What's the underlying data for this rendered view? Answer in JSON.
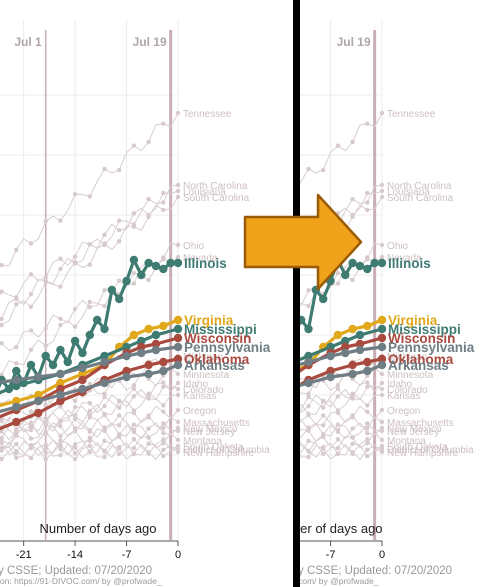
{
  "chart_data": {
    "type": "line",
    "xlabel": "Number of days ago",
    "xticks": [
      -21,
      -14,
      -7,
      0
    ],
    "xticks_right": [
      -7,
      0
    ],
    "date_markers": [
      "Jul 1",
      "Jul 19"
    ],
    "date_markers_right": [
      "Jul 19"
    ],
    "footer_source": "y CSSE; Updated: 07/20/2020",
    "footer_credit": "ion: https://91-DIVOC.com/ by @profwade_",
    "footer_source_right": "y CSSE; Updated: 07/20/2020",
    "footer_credit_right": "com/ by @profwade_",
    "x_domain": [
      -28,
      0
    ],
    "y_domain": [
      0,
      100
    ],
    "highlighted": [
      {
        "name": "Illinois",
        "color": "#3e7b71",
        "values": [
          [
            -28,
            16
          ],
          [
            -27,
            18
          ],
          [
            -26,
            22
          ],
          [
            -25,
            19
          ],
          [
            -24,
            25
          ],
          [
            -23,
            22
          ],
          [
            -22,
            28
          ],
          [
            -21,
            24
          ],
          [
            -20,
            30
          ],
          [
            -19,
            26
          ],
          [
            -18,
            33
          ],
          [
            -17,
            30
          ],
          [
            -16,
            35
          ],
          [
            -15,
            31
          ],
          [
            -14,
            38
          ],
          [
            -13,
            34
          ],
          [
            -12,
            40
          ],
          [
            -11,
            45
          ],
          [
            -10,
            42
          ],
          [
            -9,
            55
          ],
          [
            -8,
            52
          ],
          [
            -7,
            58
          ],
          [
            -6,
            65
          ],
          [
            -5,
            60
          ],
          [
            -4,
            64
          ],
          [
            -3,
            63
          ],
          [
            -2,
            62
          ],
          [
            -1,
            64
          ],
          [
            0,
            64
          ]
        ]
      },
      {
        "name": "Virginia",
        "color": "#e0a81a",
        "values": [
          [
            -28,
            14
          ],
          [
            -25,
            16
          ],
          [
            -22,
            18
          ],
          [
            -19,
            20
          ],
          [
            -16,
            24
          ],
          [
            -13,
            27
          ],
          [
            -10,
            30
          ],
          [
            -8,
            36
          ],
          [
            -6,
            40
          ],
          [
            -4,
            42
          ],
          [
            -2,
            43
          ],
          [
            0,
            45
          ]
        ]
      },
      {
        "name": "Mississippi",
        "color": "#3e7b71",
        "values": [
          [
            -28,
            17
          ],
          [
            -25,
            20
          ],
          [
            -22,
            23
          ],
          [
            -19,
            25
          ],
          [
            -16,
            27
          ],
          [
            -13,
            30
          ],
          [
            -10,
            33
          ],
          [
            -7,
            36
          ],
          [
            -5,
            38
          ],
          [
            -3,
            40
          ],
          [
            0,
            42
          ]
        ]
      },
      {
        "name": "Wisconsin",
        "color": "#a94a3f",
        "values": [
          [
            -28,
            10
          ],
          [
            -25,
            12
          ],
          [
            -22,
            15
          ],
          [
            -19,
            18
          ],
          [
            -16,
            22
          ],
          [
            -13,
            25
          ],
          [
            -10,
            30
          ],
          [
            -7,
            34
          ],
          [
            -5,
            36
          ],
          [
            -3,
            37
          ],
          [
            0,
            39
          ]
        ]
      },
      {
        "name": "Pennsylvania",
        "color": "#6f7d85",
        "values": [
          [
            -28,
            24
          ],
          [
            -25,
            24
          ],
          [
            -22,
            25
          ],
          [
            -19,
            26
          ],
          [
            -16,
            27
          ],
          [
            -13,
            29
          ],
          [
            -10,
            31
          ],
          [
            -7,
            33
          ],
          [
            -5,
            34
          ],
          [
            -3,
            35
          ],
          [
            0,
            36
          ]
        ]
      },
      {
        "name": "Oklahoma",
        "color": "#a94a3f",
        "values": [
          [
            -28,
            6
          ],
          [
            -25,
            8
          ],
          [
            -22,
            11
          ],
          [
            -19,
            14
          ],
          [
            -16,
            18
          ],
          [
            -13,
            21
          ],
          [
            -10,
            25
          ],
          [
            -7,
            28
          ],
          [
            -4,
            30
          ],
          [
            -2,
            31
          ],
          [
            0,
            32
          ]
        ]
      },
      {
        "name": "Arkansas",
        "color": "#6f7d85",
        "values": [
          [
            -28,
            12
          ],
          [
            -25,
            14
          ],
          [
            -22,
            16
          ],
          [
            -19,
            18
          ],
          [
            -16,
            20
          ],
          [
            -13,
            22
          ],
          [
            -10,
            24
          ],
          [
            -7,
            26
          ],
          [
            -4,
            27
          ],
          [
            -2,
            28
          ],
          [
            0,
            30
          ]
        ]
      }
    ],
    "background": [
      {
        "name": "Tennessee",
        "y0": 55,
        "y1": 114
      },
      {
        "name": "North Carolina",
        "y0": 40,
        "y1": 90
      },
      {
        "name": "Louisiana",
        "y0": 46,
        "y1": 88
      },
      {
        "name": "South Carolina",
        "y0": 38,
        "y1": 86
      },
      {
        "name": "Ohio",
        "y0": 20,
        "y1": 70
      },
      {
        "name": "Nevada",
        "y0": 30,
        "y1": 66
      },
      {
        "name": "Michigan",
        "y0": 8,
        "y1": 33
      },
      {
        "name": "Minnesota",
        "y0": 14,
        "y1": 27
      },
      {
        "name": "Idaho",
        "y0": 4,
        "y1": 24
      },
      {
        "name": "Kansas",
        "y0": 6,
        "y1": 20
      },
      {
        "name": "Colorado",
        "y0": 8,
        "y1": 22
      },
      {
        "name": "Oregon",
        "y0": 4,
        "y1": 15
      },
      {
        "name": "Massachusetts",
        "y0": 10,
        "y1": 11
      },
      {
        "name": "New Jersey",
        "y0": 9,
        "y1": 8
      },
      {
        "name": "New Mexico",
        "y0": 3,
        "y1": 9
      },
      {
        "name": "Montana",
        "y0": 1,
        "y1": 5
      },
      {
        "name": "South Dakota",
        "y0": 2,
        "y1": 3
      },
      {
        "name": "District of Columbia",
        "y0": 1,
        "y1": 2
      },
      {
        "name": "New Hampshire",
        "y0": 1,
        "y1": 1
      }
    ]
  }
}
